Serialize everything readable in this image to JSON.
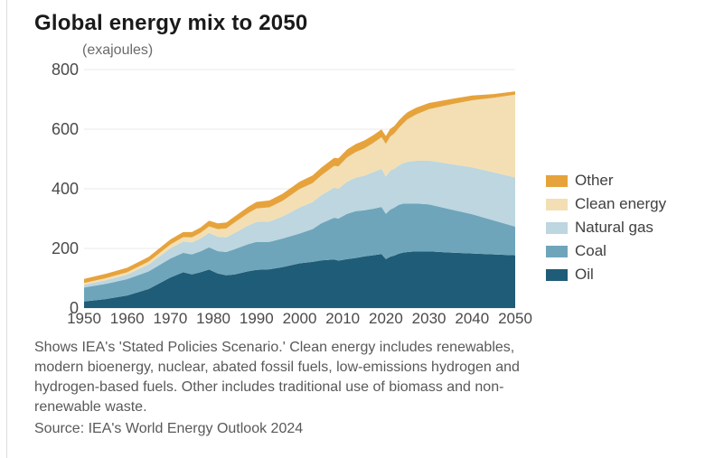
{
  "page": {
    "title": "Global energy mix to 2050",
    "unit_label": "(exajoules)",
    "footnote": "Shows IEA's 'Stated Policies Scenario.' Clean energy includes renewables, modern bioenergy, nuclear, abated fossil fuels, low-emissions hydrogen and hydrogen-based fuels. Other includes traditional use of biomass and non-renewable waste.",
    "source": "Source: IEA's World Energy Outlook 2024"
  },
  "chart_data": {
    "type": "area",
    "stacked": true,
    "title": "Global energy mix to 2050",
    "ylabel": "(exajoules)",
    "xlabel": "",
    "xlim": [
      1950,
      2050
    ],
    "ylim": [
      0,
      800
    ],
    "xticks": [
      1950,
      1960,
      1970,
      1980,
      1990,
      2000,
      2010,
      2020,
      2030,
      2040,
      2050
    ],
    "yticks": [
      0,
      200,
      400,
      600,
      800
    ],
    "grid": "horizontal",
    "legend_position": "right",
    "x": [
      1950,
      1955,
      1960,
      1965,
      1970,
      1973,
      1975,
      1977,
      1979,
      1981,
      1983,
      1985,
      1988,
      1990,
      1993,
      1996,
      2000,
      2003,
      2005,
      2008,
      2009,
      2011,
      2013,
      2015,
      2017,
      2019,
      2020,
      2021,
      2022,
      2023,
      2024,
      2025,
      2027,
      2030,
      2035,
      2040,
      2045,
      2050
    ],
    "series": [
      {
        "name": "Oil",
        "color": "#1F5C77",
        "values": [
          22,
          30,
          42,
          64,
          102,
          120,
          113,
          120,
          129,
          116,
          110,
          113,
          123,
          128,
          130,
          137,
          150,
          155,
          160,
          163,
          159,
          164,
          168,
          173,
          177,
          181,
          164,
          172,
          176,
          182,
          186,
          188,
          190,
          190,
          186,
          183,
          180,
          177
        ]
      },
      {
        "name": "Coal",
        "color": "#6FA5BA",
        "values": [
          47,
          51,
          55,
          59,
          64,
          65,
          67,
          70,
          75,
          75,
          78,
          85,
          91,
          94,
          92,
          96,
          100,
          110,
          124,
          140,
          141,
          152,
          157,
          155,
          156,
          158,
          152,
          158,
          161,
          164,
          164,
          163,
          161,
          158,
          145,
          132,
          114,
          96
        ]
      },
      {
        "name": "Natural gas",
        "color": "#BDD6E0",
        "values": [
          9,
          12,
          15,
          23,
          34,
          38,
          40,
          43,
          48,
          48,
          49,
          54,
          62,
          67,
          68,
          74,
          87,
          90,
          94,
          101,
          100,
          108,
          112,
          116,
          122,
          128,
          125,
          131,
          130,
          132,
          136,
          139,
          143,
          147,
          152,
          157,
          161,
          165
        ]
      },
      {
        "name": "Clean energy",
        "color": "#F3DFB3",
        "values": [
          6,
          7,
          8,
          10,
          13,
          15,
          17,
          19,
          22,
          26,
          30,
          36,
          42,
          45,
          48,
          52,
          62,
          64,
          67,
          73,
          75,
          81,
          86,
          91,
          98,
          106,
          110,
          114,
          119,
          126,
          133,
          143,
          155,
          172,
          200,
          225,
          250,
          278
        ]
      },
      {
        "name": "Other",
        "color": "#E6A33C",
        "values": [
          14,
          15,
          15,
          16,
          17,
          17,
          18,
          18,
          19,
          19,
          20,
          20,
          21,
          22,
          23,
          24,
          25,
          26,
          26,
          27,
          27,
          27,
          27,
          27,
          26,
          26,
          26,
          26,
          25,
          25,
          25,
          24,
          23,
          21,
          18,
          16,
          13,
          11
        ]
      }
    ],
    "legend": [
      {
        "label": "Other",
        "color": "#E6A33C"
      },
      {
        "label": "Clean energy",
        "color": "#F3DFB3"
      },
      {
        "label": "Natural gas",
        "color": "#BDD6E0"
      },
      {
        "label": "Coal",
        "color": "#6FA5BA"
      },
      {
        "label": "Oil",
        "color": "#1F5C77"
      }
    ],
    "colors": {
      "gridline": "#e8e8e8",
      "tick_label": "#4a4a4a"
    }
  }
}
